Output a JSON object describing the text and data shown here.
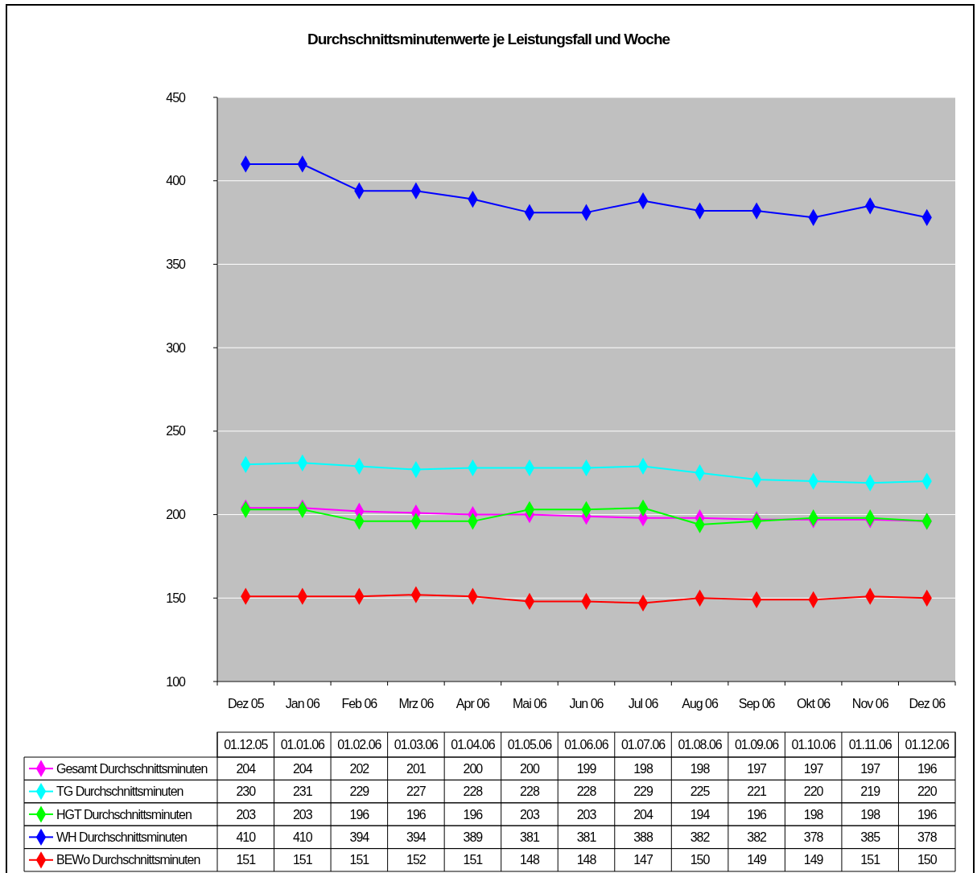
{
  "chart_data": {
    "type": "line",
    "title": "Durchschnittsminutenwerte je Leistungsfall und Woche",
    "categories": [
      "Dez 05",
      "Jan 06",
      "Feb 06",
      "Mrz 06",
      "Apr 06",
      "Mai 06",
      "Jun 06",
      "Jul 06",
      "Aug 06",
      "Sep 06",
      "Okt 06",
      "Nov 06",
      "Dez 06"
    ],
    "annotations": [
      "01.12.05",
      "01.01.06",
      "01.02.06",
      "01.03.06",
      "01.04.06",
      "01.05.06",
      "01.06.06",
      "01.07.06",
      "01.08.06",
      "01.09.06",
      "01.10.06",
      "01.11.06",
      "01.12.06"
    ],
    "series": [
      {
        "name": "Gesamt Durchschnittsminuten",
        "color": "#ff00ff",
        "values": [
          204,
          204,
          202,
          201,
          200,
          200,
          199,
          198,
          198,
          197,
          197,
          197,
          196
        ]
      },
      {
        "name": "TG Durchschnittsminuten",
        "color": "#00ffff",
        "values": [
          230,
          231,
          229,
          227,
          228,
          228,
          228,
          229,
          225,
          221,
          220,
          219,
          220
        ]
      },
      {
        "name": "HGT Durchschnittsminuten",
        "color": "#00ff00",
        "values": [
          203,
          203,
          196,
          196,
          196,
          203,
          203,
          204,
          194,
          196,
          198,
          198,
          196
        ]
      },
      {
        "name": "WH Durchschnittsminuten",
        "color": "#0000ff",
        "values": [
          410,
          410,
          394,
          394,
          389,
          381,
          381,
          388,
          382,
          382,
          378,
          385,
          378
        ]
      },
      {
        "name": "BEWo Durchschnittsminuten",
        "color": "#ff0000",
        "values": [
          151,
          151,
          151,
          152,
          151,
          148,
          148,
          147,
          150,
          149,
          149,
          151,
          150
        ]
      }
    ],
    "ylim": [
      100,
      450
    ],
    "yticks": [
      100,
      150,
      200,
      250,
      300,
      350,
      400,
      450
    ],
    "grid": "y",
    "legend": "bottom",
    "marker": "diamond",
    "data_labels": true
  }
}
